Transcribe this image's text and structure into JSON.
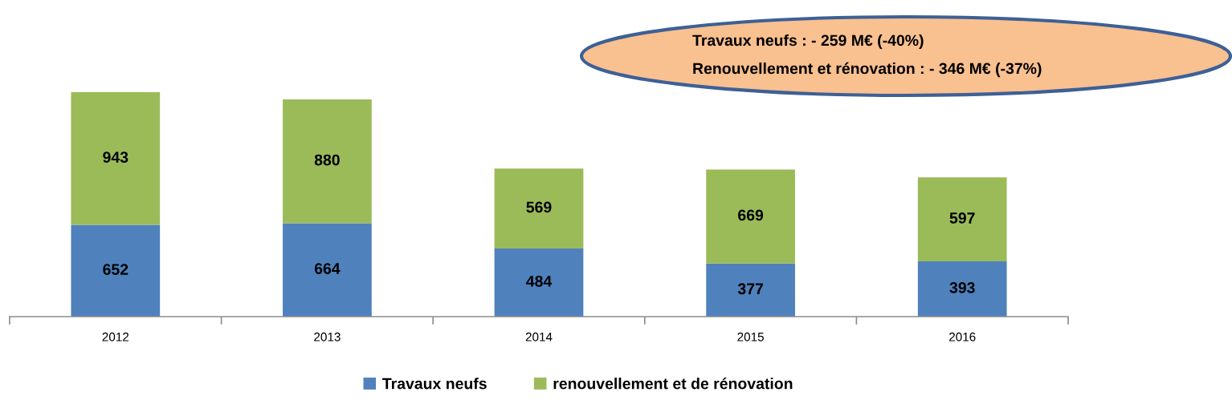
{
  "chart_data": {
    "type": "bar",
    "stacked": true,
    "categories": [
      "2012",
      "2013",
      "2014",
      "2015",
      "2016"
    ],
    "series": [
      {
        "name": "Travaux neufs",
        "color": "#4f81bd",
        "values": [
          652,
          664,
          484,
          377,
          393
        ]
      },
      {
        "name": "renouvellement et de rénovation",
        "color": "#9bbb59",
        "values": [
          943,
          880,
          569,
          669,
          597
        ]
      }
    ],
    "data_labels": true,
    "tick_labels": "x",
    "legend": "bottom",
    "annotations": [
      "Travaux neufs : - 259 M€ (-40%)",
      "Renouvellement et rénovation : - 346 M€ (-37%)"
    ]
  }
}
